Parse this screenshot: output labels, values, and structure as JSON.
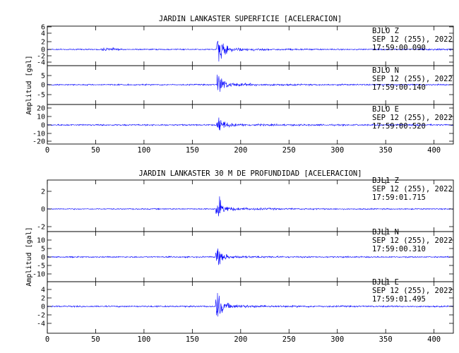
{
  "chart_data": [
    {
      "type": "line",
      "title": "JARDIN LANKASTER SUPERFICIE [ACELERACION]",
      "ylabel": "Amplitud [gal]",
      "xlim": [
        0,
        420
      ],
      "x_ticks": [
        "0",
        "50",
        "100",
        "150",
        "200",
        "250",
        "300",
        "350",
        "400"
      ],
      "color": "#0000ff",
      "event_time_s": 176,
      "traces": [
        {
          "station": "BJLO",
          "component": "Z",
          "date": "SEP 12 (255), 2022",
          "time": "17:59:00.090",
          "ylim": [
            -6,
            6
          ],
          "y_ticks": [
            "6",
            "4",
            "2",
            "0",
            "-2",
            "-4"
          ],
          "peak_amplitude": 5.5
        },
        {
          "station": "BJLO",
          "component": "N",
          "date": "SEP 12 (255), 2022",
          "time": "17:59:00.140",
          "ylim": [
            -10,
            10
          ],
          "y_ticks": [
            "5",
            "0",
            "-5"
          ],
          "peak_amplitude": 9
        },
        {
          "station": "BJLO",
          "component": "E",
          "date": "SEP 12 (255), 2022",
          "time": "17:59:00.520",
          "ylim": [
            -20,
            25
          ],
          "y_ticks": [
            "20",
            "10",
            "0",
            "-10",
            "-20"
          ],
          "peak_amplitude": 15
        }
      ]
    },
    {
      "type": "line",
      "title": "JARDIN LANKASTER 30 M DE PROFUNDIDAD [ACELERACION]",
      "ylabel": "Amplitud [gal]",
      "xlim": [
        0,
        420
      ],
      "x_ticks": [
        "0",
        "50",
        "100",
        "150",
        "200",
        "250",
        "300",
        "350",
        "400"
      ],
      "color": "#0000ff",
      "event_time_s": 175,
      "traces": [
        {
          "station": "BJL1",
          "component": "Z",
          "date": "SEP 12 (255), 2022",
          "time": "17:59:01.715",
          "ylim": [
            -3,
            3.5
          ],
          "y_ticks": [
            "2",
            "0",
            "-2"
          ],
          "peak_amplitude": 2
        },
        {
          "station": "BJL1",
          "component": "N",
          "date": "SEP 12 (255), 2022",
          "time": "17:59:00.310",
          "ylim": [
            -11,
            13
          ],
          "y_ticks": [
            "10",
            "5",
            "0",
            "-5",
            "-10"
          ],
          "peak_amplitude": 8
        },
        {
          "station": "BJL1",
          "component": "E",
          "date": "SEP 12 (255), 2022",
          "time": "17:59:01.495",
          "ylim": [
            -5,
            5
          ],
          "y_ticks": [
            "4",
            "2",
            "0",
            "-2",
            "-4"
          ],
          "peak_amplitude": 4.5
        }
      ]
    }
  ]
}
